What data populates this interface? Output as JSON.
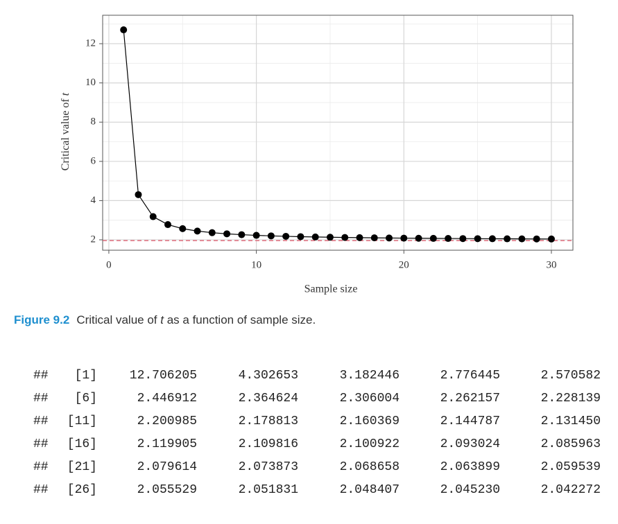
{
  "chart_data": {
    "type": "line",
    "x_label": "Sample size",
    "y_label_parts": [
      "Critical value of ",
      "t"
    ],
    "x": [
      1,
      2,
      3,
      4,
      5,
      6,
      7,
      8,
      9,
      10,
      11,
      12,
      13,
      14,
      15,
      16,
      17,
      18,
      19,
      20,
      21,
      22,
      23,
      24,
      25,
      26,
      27,
      28,
      29,
      30
    ],
    "values": [
      12.706205,
      4.302653,
      3.182446,
      2.776445,
      2.570582,
      2.446912,
      2.364624,
      2.306004,
      2.262157,
      2.228139,
      2.200985,
      2.178813,
      2.160369,
      2.144787,
      2.13145,
      2.119905,
      2.109816,
      2.100922,
      2.093024,
      2.085963,
      2.079614,
      2.073873,
      2.068658,
      2.063899,
      2.059539,
      2.055529,
      2.051831,
      2.048407,
      2.04523,
      2.042272
    ],
    "color": "#000000",
    "xlim": [
      -0.42,
      31.46
    ],
    "ylim": [
      1.47,
      13.45
    ],
    "xticks": [
      0,
      10,
      20,
      30
    ],
    "yticks": [
      2,
      4,
      6,
      8,
      10,
      12
    ],
    "x_minor_grid": [
      5,
      15,
      25
    ],
    "y_minor_grid": [
      3,
      5,
      7,
      9,
      11,
      13
    ],
    "grid": true,
    "reference_line": 1.96,
    "reference_color": "#e0596b"
  },
  "caption": {
    "label": "Figure 9.2",
    "parts": [
      "Critical value of ",
      "t",
      " as a function of sample size."
    ]
  },
  "console": {
    "prefix": "##",
    "rows": [
      {
        "index": "[1]",
        "values": [
          "12.706205",
          "4.302653",
          "3.182446",
          "2.776445",
          "2.570582"
        ]
      },
      {
        "index": "[6]",
        "values": [
          "2.446912",
          "2.364624",
          "2.306004",
          "2.262157",
          "2.228139"
        ]
      },
      {
        "index": "[11]",
        "values": [
          "2.200985",
          "2.178813",
          "2.160369",
          "2.144787",
          "2.131450"
        ]
      },
      {
        "index": "[16]",
        "values": [
          "2.119905",
          "2.109816",
          "2.100922",
          "2.093024",
          "2.085963"
        ]
      },
      {
        "index": "[21]",
        "values": [
          "2.079614",
          "2.073873",
          "2.068658",
          "2.063899",
          "2.059539"
        ]
      },
      {
        "index": "[26]",
        "values": [
          "2.055529",
          "2.051831",
          "2.048407",
          "2.045230",
          "2.042272"
        ]
      }
    ]
  }
}
